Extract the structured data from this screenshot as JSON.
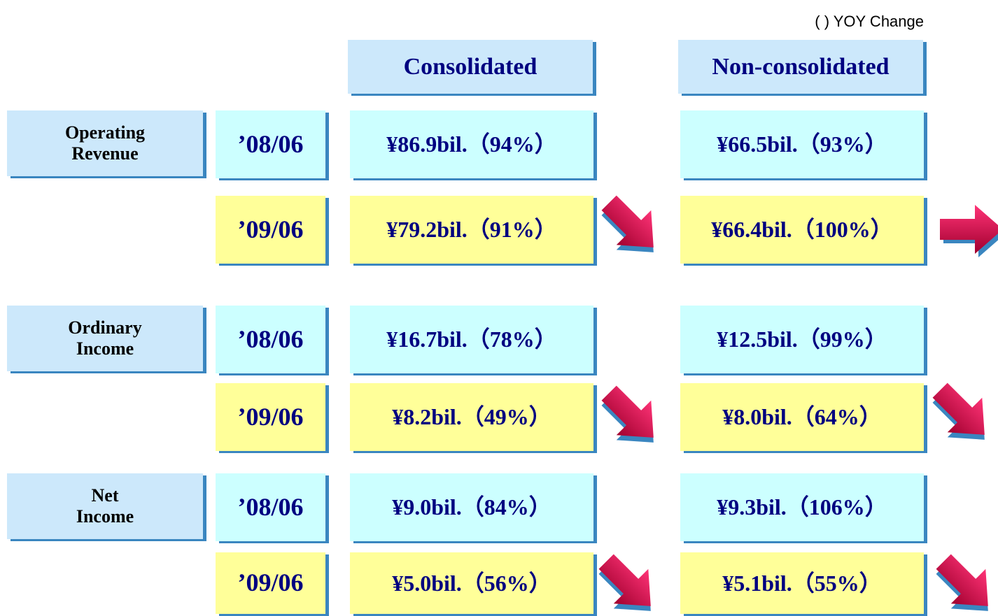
{
  "note": "( ) YOY Change",
  "columns": [
    "Consolidated",
    "Non-consolidated"
  ],
  "groups": [
    {
      "label": [
        "Operating",
        "Revenue"
      ],
      "rows": [
        {
          "period": "’08/06",
          "values": [
            "¥86.9bil.（94%）",
            "¥66.5bil.（93%）"
          ]
        },
        {
          "period": "’09/06",
          "values": [
            "¥79.2bil.（91%）",
            "¥66.4bil.（100%）"
          ]
        }
      ]
    },
    {
      "label": [
        "Ordinary",
        "Income"
      ],
      "rows": [
        {
          "period": "’08/06",
          "values": [
            "¥16.7bil.（78%）",
            "¥12.5bil.（99%）"
          ]
        },
        {
          "period": "’09/06",
          "values": [
            "¥8.2bil.（49%）",
            "¥8.0bil.（64%）"
          ]
        }
      ]
    },
    {
      "label": [
        "Net",
        "Income"
      ],
      "rows": [
        {
          "period": "’08/06",
          "values": [
            "¥9.0bil.（84%）",
            "¥9.3bil.（106%）"
          ]
        },
        {
          "period": "’09/06",
          "values": [
            "¥5.0bil.（56%）",
            "¥5.1bil.（55%）"
          ]
        }
      ]
    }
  ]
}
